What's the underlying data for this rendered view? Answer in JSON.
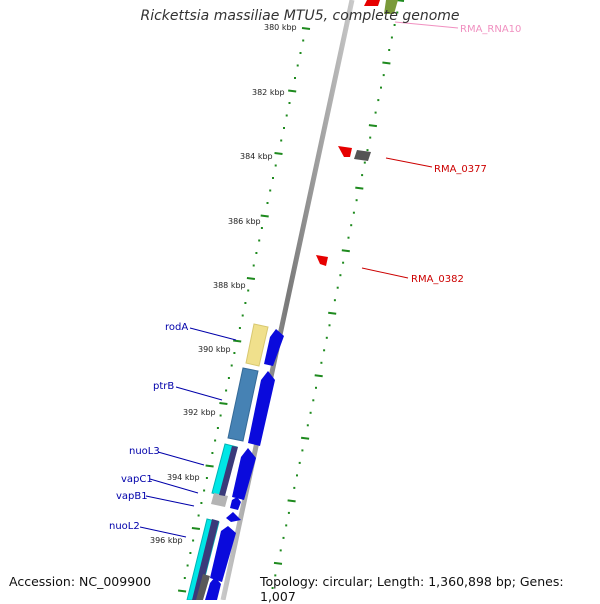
{
  "title": "Rickettsia massiliae MTU5, complete genome",
  "footer": {
    "accession": "Accession: NC_009900",
    "summary": "Topology: circular; Length: 1,360,898 bp; Genes: 1,007"
  },
  "scale_labels": [
    "380 kbp",
    "382 kbp",
    "384 kbp",
    "386 kbp",
    "388 kbp",
    "390 kbp",
    "392 kbp",
    "394 kbp",
    "396 kbp"
  ],
  "right_labels": [
    {
      "text": "RMA_RNA10",
      "color": "#f090c0"
    },
    {
      "text": "RMA_0377",
      "color": "#cc0000"
    },
    {
      "text": "RMA_0382",
      "color": "#cc0000"
    }
  ],
  "left_labels": [
    {
      "text": "rodA",
      "color": "#0000aa"
    },
    {
      "text": "ptrB",
      "color": "#0000aa"
    },
    {
      "text": "nuoL3",
      "color": "#0000aa"
    },
    {
      "text": "vapC1",
      "color": "#0000aa"
    },
    {
      "text": "vapB1",
      "color": "#0000aa"
    },
    {
      "text": "nuoL2",
      "color": "#0000aa"
    }
  ],
  "colors": {
    "tick": "#1e8a1e",
    "backbone": "#8c8c8c",
    "cds_forward": "#0a0adc",
    "cds_reverse": "#e60000",
    "cog_rodA": "#f0e08c",
    "cog_ptrB": "#4682b4",
    "cog_nuo": "#00e6e6",
    "cog_vap": "#b4b4b4"
  }
}
